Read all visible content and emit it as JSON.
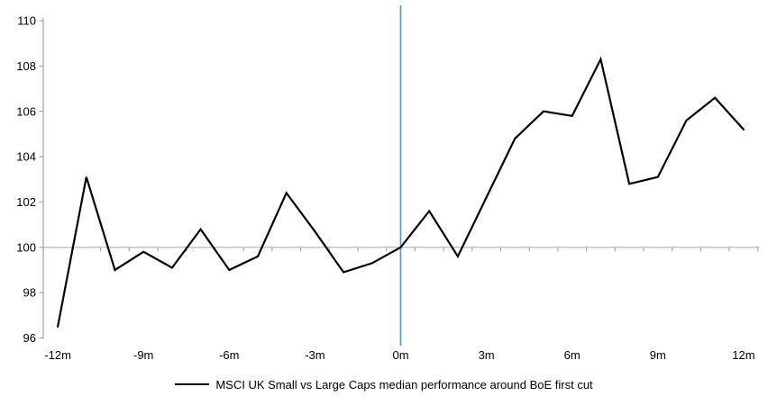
{
  "chart_data": {
    "type": "line",
    "title": "",
    "xlabel": "",
    "ylabel": "",
    "x": [
      -12,
      -11,
      -10,
      -9,
      -8,
      -7,
      -6,
      -5,
      -4,
      -3,
      -2,
      -1,
      0,
      1,
      2,
      3,
      4,
      5,
      6,
      7,
      8,
      9,
      10,
      11,
      12
    ],
    "series": [
      {
        "name": "MSCI UK Small vs Large Caps median performance around BoE first cut",
        "color": "#000000",
        "values": [
          96.5,
          103.1,
          99.0,
          99.8,
          99.1,
          100.8,
          99.0,
          99.6,
          102.4,
          100.7,
          98.9,
          99.3,
          100.0,
          101.6,
          99.6,
          102.2,
          104.8,
          106.0,
          105.8,
          108.3,
          102.8,
          103.1,
          105.6,
          106.6,
          105.2
        ]
      }
    ],
    "xlim": [
      -12,
      12
    ],
    "ylim": [
      96,
      110
    ],
    "x_tick_values": [
      -12,
      -9,
      -6,
      -3,
      0,
      3,
      6,
      9,
      12
    ],
    "x_tick_labels": [
      "-12m",
      "-9m",
      "-6m",
      "-3m",
      "0m",
      "3m",
      "6m",
      "9m",
      "12m"
    ],
    "y_ticks": [
      96,
      98,
      100,
      102,
      104,
      106,
      108,
      110
    ],
    "grid": false,
    "legend_position": "bottom-center",
    "reference_lines": {
      "baseline_value": 100,
      "baseline_color": "#BFBFBF",
      "event_x": 0,
      "event_color": "#5B9BD5"
    },
    "axis_color": "#A6A6A6",
    "text_color": "#000000"
  }
}
